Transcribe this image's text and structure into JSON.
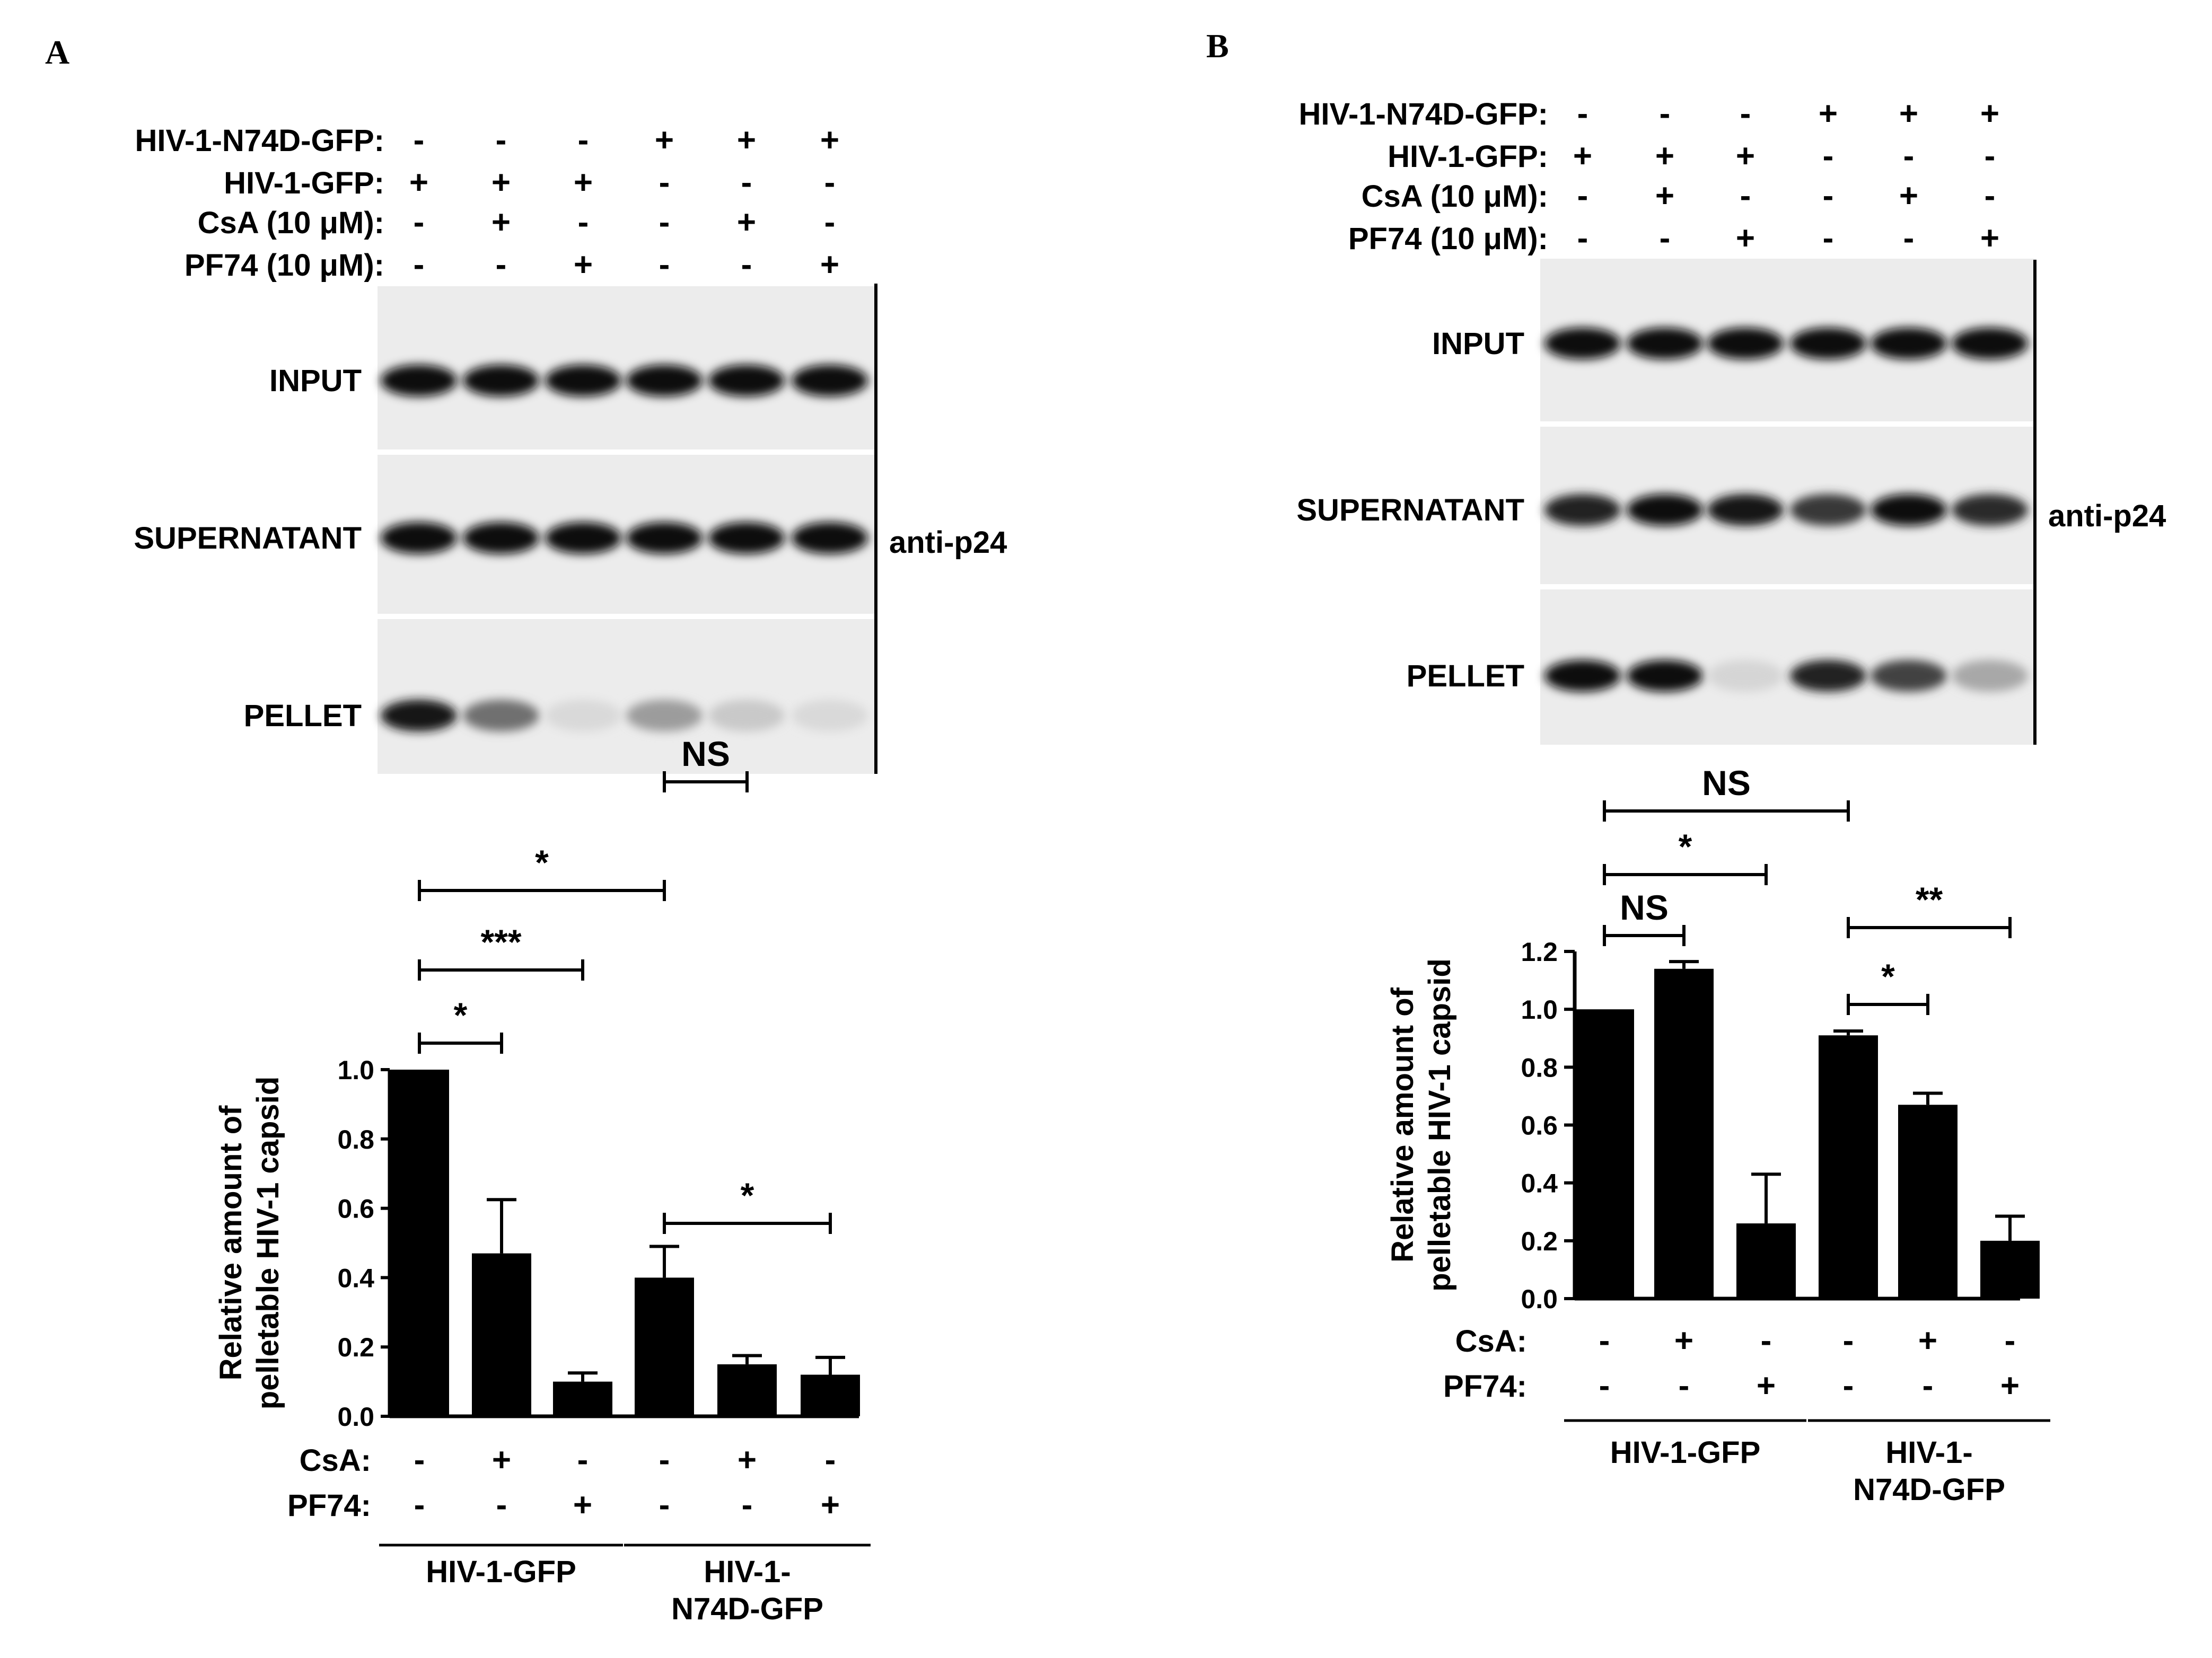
{
  "panels": [
    {
      "letter": "A",
      "blot": {
        "conditions": [
          {
            "label": "HIV-1-N74D-GFP:",
            "signs": [
              "-",
              "-",
              "-",
              "+",
              "+",
              "+"
            ]
          },
          {
            "label": "HIV-1-GFP:",
            "signs": [
              "+",
              "+",
              "+",
              "-",
              "-",
              "-"
            ]
          },
          {
            "label": "CsA (10 μM):",
            "signs": [
              "-",
              "+",
              "-",
              "-",
              "+",
              "-"
            ]
          },
          {
            "label": "PF74 (10 μM):",
            "signs": [
              "-",
              "-",
              "+",
              "-",
              "-",
              "+"
            ]
          }
        ],
        "strips": [
          {
            "label": "INPUT",
            "intensity": [
              1,
              1,
              1,
              1,
              1,
              1
            ]
          },
          {
            "label": "SUPERNATANT",
            "intensity": [
              1,
              1,
              1,
              1,
              1,
              1
            ]
          },
          {
            "label": "PELLET",
            "intensity": [
              0.95,
              0.55,
              0.08,
              0.35,
              0.15,
              0.08
            ]
          }
        ],
        "antibody": "anti-p24"
      },
      "chart_data": {
        "type": "bar",
        "ylabel": "Relative amount of pelletable HIV-1 capsid",
        "ylim": [
          0,
          1.0
        ],
        "yticks": [
          "0.0",
          "0.2",
          "0.4",
          "0.6",
          "0.8",
          "1.0"
        ],
        "values": [
          1.0,
          0.47,
          0.1,
          0.4,
          0.15,
          0.12
        ],
        "errors": [
          0.0,
          0.155,
          0.025,
          0.09,
          0.025,
          0.05
        ],
        "treatment_rows": [
          {
            "label": "CsA:",
            "signs": [
              "-",
              "+",
              "-",
              "-",
              "+",
              "-"
            ]
          },
          {
            "label": "PF74:",
            "signs": [
              "-",
              "-",
              "+",
              "-",
              "-",
              "+"
            ]
          }
        ],
        "groups": [
          {
            "label": "HIV-1-GFP",
            "bars": [
              0,
              1,
              2
            ]
          },
          {
            "label": "HIV-1- N74D-GFP",
            "bars": [
              3,
              4,
              5
            ]
          }
        ],
        "significance": [
          {
            "from": 0,
            "to": 1,
            "label": "*"
          },
          {
            "from": 0,
            "to": 2,
            "label": "***"
          },
          {
            "from": 0,
            "to": 3,
            "label": "*"
          },
          {
            "from": 3,
            "to": 4,
            "label": "NS"
          },
          {
            "from": 3,
            "to": 5,
            "label": "*"
          }
        ]
      }
    },
    {
      "letter": "B",
      "blot": {
        "conditions": [
          {
            "label": "HIV-1-N74D-GFP:",
            "signs": [
              "-",
              "-",
              "-",
              "+",
              "+",
              "+"
            ]
          },
          {
            "label": "HIV-1-GFP:",
            "signs": [
              "+",
              "+",
              "+",
              "-",
              "-",
              "-"
            ]
          },
          {
            "label": "CsA (10 μM):",
            "signs": [
              "-",
              "+",
              "-",
              "-",
              "+",
              "-"
            ]
          },
          {
            "label": "PF74 (10 μM):",
            "signs": [
              "-",
              "-",
              "+",
              "-",
              "-",
              "+"
            ]
          }
        ],
        "strips": [
          {
            "label": "INPUT",
            "intensity": [
              1,
              1,
              1,
              1,
              1,
              1
            ]
          },
          {
            "label": "SUPERNATANT",
            "intensity": [
              0.9,
              1,
              0.95,
              0.8,
              1,
              0.85
            ]
          },
          {
            "label": "PELLET",
            "intensity": [
              1,
              1,
              0.1,
              0.9,
              0.75,
              0.3
            ]
          }
        ],
        "antibody": "anti-p24"
      },
      "chart_data": {
        "type": "bar",
        "ylabel": "Relative amount of pelletable HIV-1 capsid",
        "ylim": [
          0,
          1.2
        ],
        "yticks": [
          "0.0",
          "0.2",
          "0.4",
          "0.6",
          "0.8",
          "1.0",
          "1.2"
        ],
        "values": [
          1.0,
          1.14,
          0.26,
          0.91,
          0.67,
          0.2
        ],
        "errors": [
          0.0,
          0.025,
          0.17,
          0.015,
          0.04,
          0.085
        ],
        "treatment_rows": [
          {
            "label": "CsA:",
            "signs": [
              "-",
              "+",
              "-",
              "-",
              "+",
              "-"
            ]
          },
          {
            "label": "PF74:",
            "signs": [
              "-",
              "-",
              "+",
              "-",
              "-",
              "+"
            ]
          }
        ],
        "groups": [
          {
            "label": "HIV-1-GFP",
            "bars": [
              0,
              1,
              2
            ]
          },
          {
            "label": "HIV-1- N74D-GFP",
            "bars": [
              3,
              4,
              5
            ]
          }
        ],
        "significance": [
          {
            "from": 0,
            "to": 3,
            "label": "NS"
          },
          {
            "from": 0,
            "to": 2,
            "label": "*"
          },
          {
            "from": 0,
            "to": 1,
            "label": "NS"
          },
          {
            "from": 3,
            "to": 5,
            "label": "**"
          },
          {
            "from": 3,
            "to": 4,
            "label": "*"
          }
        ]
      }
    }
  ]
}
